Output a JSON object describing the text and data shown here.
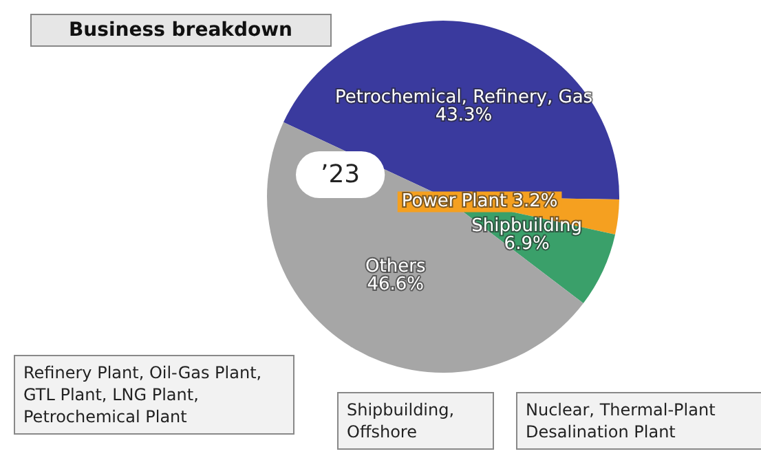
{
  "chart_data": {
    "type": "pie",
    "title": "Business breakdown",
    "categories": [
      "Petrochemical, Refinery, Gas",
      "Power Plant",
      "Shipbuilding",
      "Others"
    ],
    "values": [
      43.3,
      3.2,
      6.9,
      46.6
    ],
    "colors": [
      "#3a3a9e",
      "#f5a020",
      "#3aa06a",
      "#a6a6a6"
    ],
    "value_labels": [
      "43.3%",
      "3.2%",
      "6.9%",
      "46.6%"
    ],
    "legend": false,
    "annotations": [
      "’23",
      "Refinery Plant, Oil-Gas Plant, GTL Plant, LNG Plant, Petrochemical Plant",
      "Shipbuilding, Offshore",
      "Nuclear, Thermal-Plant Desalination Plant"
    ]
  }
}
